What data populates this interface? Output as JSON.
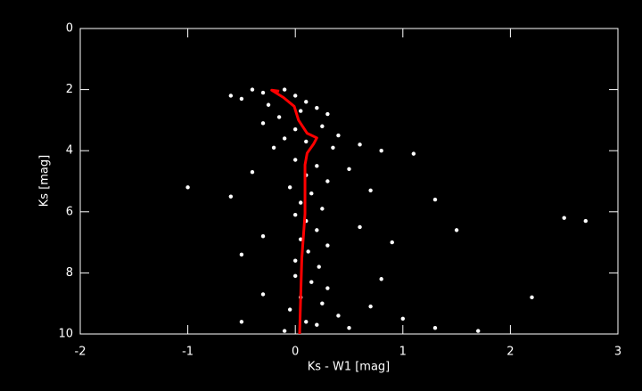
{
  "chart_data": {
    "type": "scatter",
    "x_label": "Ks - W1 [mag]",
    "y_label": "Ks [mag]",
    "xlim": [
      -2,
      3
    ],
    "xticks": [
      -2,
      -1,
      0,
      1,
      2,
      3
    ],
    "ylim": [
      10,
      0
    ],
    "yticks": [
      0,
      2,
      4,
      6,
      8,
      10
    ],
    "background": "#000000",
    "axis_color": "#ffffff",
    "series": [
      {
        "type": "scatter",
        "color": "#ffffff",
        "x": [
          -0.4,
          -0.3,
          -0.1,
          0.0,
          -0.5,
          0.1,
          -0.25,
          0.2,
          -0.6,
          0.3,
          -0.15,
          0.05,
          -0.3,
          0.25,
          0.4,
          0.0,
          0.6,
          -0.1,
          0.35,
          0.1,
          0.8,
          1.1,
          -0.2,
          0.0,
          0.2,
          0.1,
          0.3,
          -0.05,
          0.15,
          0.05,
          0.25,
          0.5,
          0.7,
          -0.4,
          -0.6,
          1.3,
          -1.0,
          0.0,
          0.1,
          0.2,
          0.05,
          0.3,
          0.12,
          0.0,
          0.22,
          0.6,
          0.9,
          2.5,
          2.7,
          -0.3,
          -0.5,
          1.5,
          0.0,
          0.15,
          0.3,
          0.05,
          0.25,
          -0.05,
          0.4,
          0.1,
          0.5,
          -0.1,
          0.2,
          0.7,
          1.0,
          1.3,
          1.7,
          2.2,
          -0.3,
          -0.5,
          0.8
        ],
        "values": [
          2.0,
          2.1,
          2.0,
          2.2,
          2.3,
          2.4,
          2.5,
          2.6,
          2.2,
          2.8,
          2.9,
          2.7,
          3.1,
          3.2,
          3.5,
          3.3,
          3.8,
          3.6,
          3.9,
          3.7,
          4.0,
          4.1,
          3.9,
          4.3,
          4.5,
          4.8,
          5.0,
          5.2,
          5.4,
          5.7,
          5.9,
          4.6,
          5.3,
          4.7,
          5.5,
          5.6,
          5.2,
          6.1,
          6.3,
          6.6,
          6.9,
          7.1,
          7.3,
          7.6,
          7.8,
          6.5,
          7.0,
          6.2,
          6.3,
          6.8,
          7.4,
          6.6,
          8.1,
          8.3,
          8.5,
          8.8,
          9.0,
          9.2,
          9.4,
          9.6,
          9.8,
          9.9,
          9.7,
          9.1,
          9.5,
          9.8,
          9.9,
          8.8,
          8.7,
          9.6,
          8.2
        ]
      },
      {
        "type": "line",
        "color": "#ff0000",
        "x": [
          -0.15,
          -0.22,
          -0.11,
          -0.01,
          0.03,
          0.11,
          0.2,
          0.17,
          0.11,
          0.09,
          0.09,
          0.06,
          0.04
        ],
        "values": [
          2.05,
          2.02,
          2.26,
          2.55,
          3.0,
          3.43,
          3.58,
          3.78,
          4.08,
          4.46,
          6.07,
          7.54,
          10
        ]
      }
    ]
  }
}
